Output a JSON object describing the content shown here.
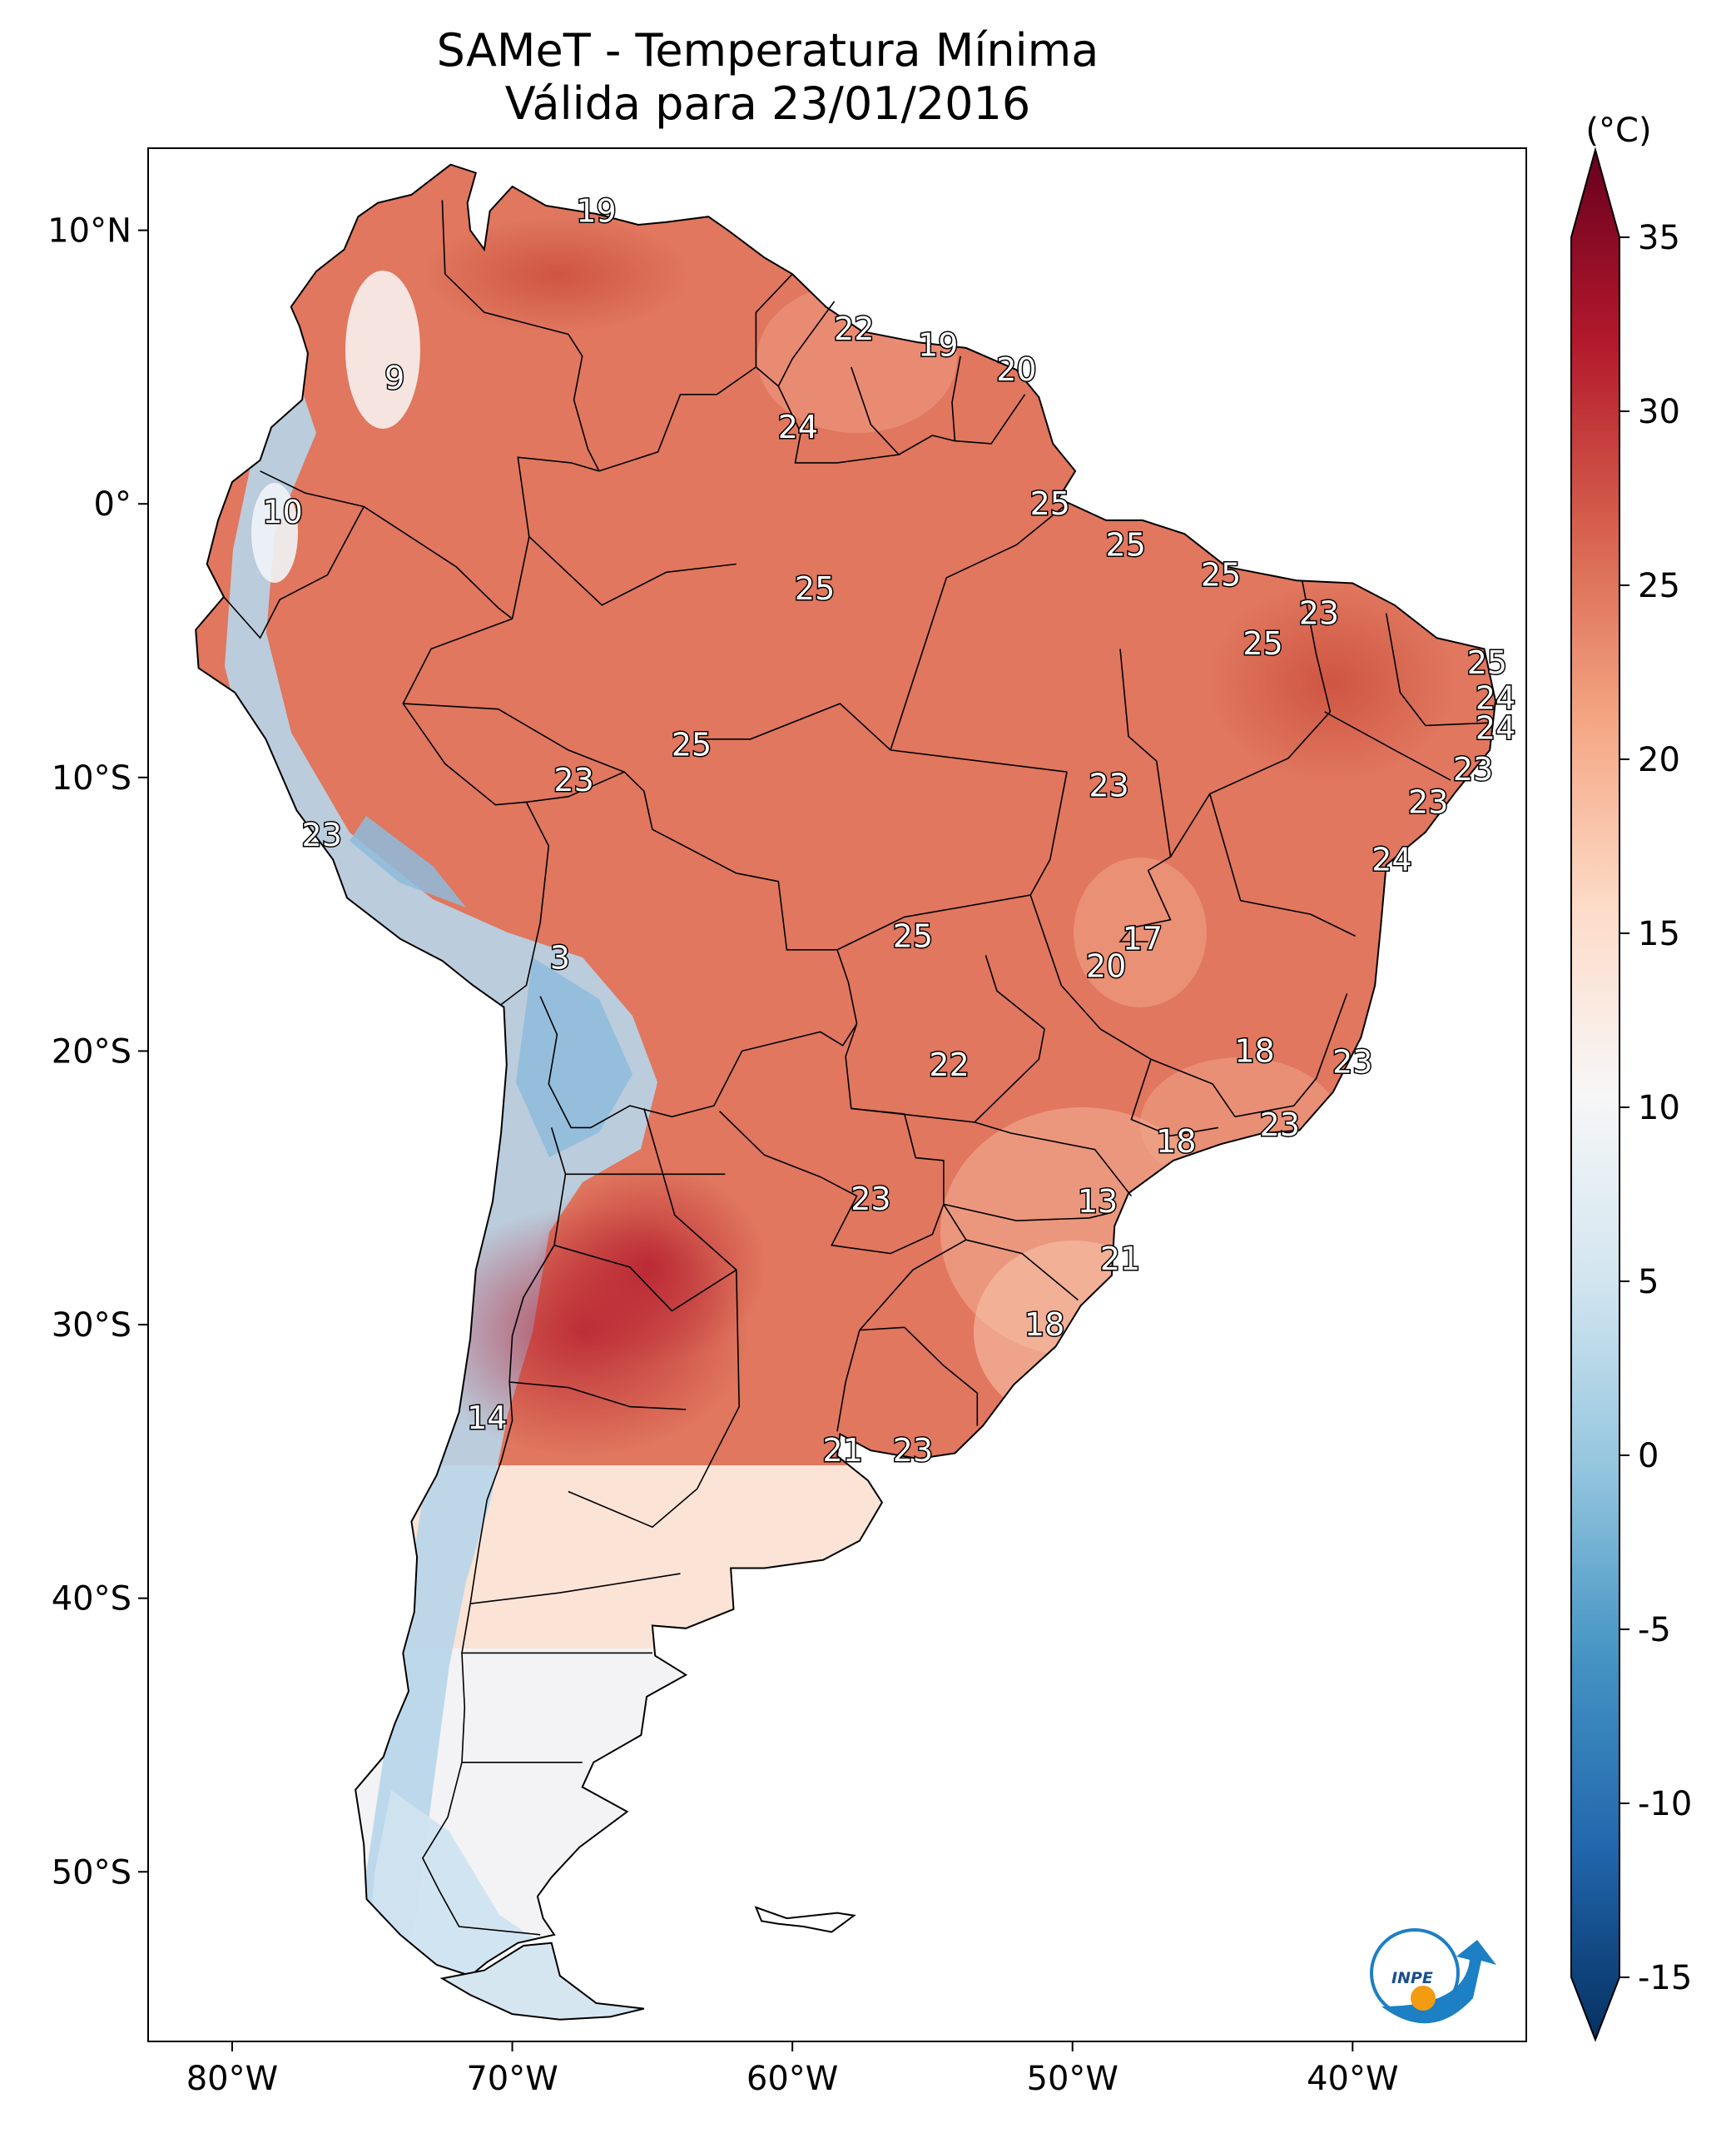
{
  "title": "SAMeT - Temperatura Mínima",
  "subtitle": "Válida para 23/01/2016",
  "colorbar": {
    "unit": "(°C)",
    "min": -15,
    "max": 35,
    "ticks": [
      "35",
      "30",
      "25",
      "20",
      "15",
      "10",
      "5",
      "0",
      "-5",
      "-10",
      "-15"
    ],
    "colors": [
      "#67001f",
      "#b2182b",
      "#d6604d",
      "#f4a582",
      "#fddbc7",
      "#f7f7f7",
      "#d1e5f0",
      "#92c5de",
      "#4393c3",
      "#2166ac",
      "#053061"
    ]
  },
  "axes": {
    "lon_labels": [
      "80°W",
      "70°W",
      "60°W",
      "50°W",
      "40°W"
    ],
    "lat_labels": [
      "10°N",
      "0°",
      "10°S",
      "20°S",
      "30°S",
      "40°S",
      "50°S"
    ]
  },
  "map_labels": [
    {
      "v": "19",
      "lon": -67.0,
      "lat": 10.7
    },
    {
      "v": "9",
      "lon": -74.2,
      "lat": 4.6
    },
    {
      "v": "22",
      "lon": -57.8,
      "lat": 6.4
    },
    {
      "v": "19",
      "lon": -54.8,
      "lat": 5.8
    },
    {
      "v": "20",
      "lon": -52.0,
      "lat": 4.9
    },
    {
      "v": "24",
      "lon": -59.8,
      "lat": 2.8
    },
    {
      "v": "10",
      "lon": -78.2,
      "lat": -0.3
    },
    {
      "v": "25",
      "lon": -50.8,
      "lat": 0.0
    },
    {
      "v": "25",
      "lon": -48.1,
      "lat": -1.5
    },
    {
      "v": "25",
      "lon": -44.7,
      "lat": -2.6
    },
    {
      "v": "25",
      "lon": -59.2,
      "lat": -3.1
    },
    {
      "v": "23",
      "lon": -41.2,
      "lat": -4.0
    },
    {
      "v": "25",
      "lon": -43.2,
      "lat": -5.1
    },
    {
      "v": "25",
      "lon": -35.2,
      "lat": -5.8
    },
    {
      "v": "24",
      "lon": -34.9,
      "lat": -7.1
    },
    {
      "v": "24",
      "lon": -34.9,
      "lat": -8.2
    },
    {
      "v": "25",
      "lon": -63.6,
      "lat": -8.8
    },
    {
      "v": "23",
      "lon": -35.7,
      "lat": -9.7
    },
    {
      "v": "23",
      "lon": -67.8,
      "lat": -10.1
    },
    {
      "v": "23",
      "lon": -48.7,
      "lat": -10.3
    },
    {
      "v": "23",
      "lon": -37.3,
      "lat": -10.9
    },
    {
      "v": "23",
      "lon": -76.8,
      "lat": -12.1
    },
    {
      "v": "24",
      "lon": -38.6,
      "lat": -13.0
    },
    {
      "v": "25",
      "lon": -55.7,
      "lat": -15.8
    },
    {
      "v": "17",
      "lon": -47.5,
      "lat": -15.9
    },
    {
      "v": "3",
      "lon": -68.3,
      "lat": -16.6
    },
    {
      "v": "20",
      "lon": -48.8,
      "lat": -16.9
    },
    {
      "v": "18",
      "lon": -43.5,
      "lat": -20.0
    },
    {
      "v": "23",
      "lon": -40.0,
      "lat": -20.4
    },
    {
      "v": "22",
      "lon": -54.4,
      "lat": -20.5
    },
    {
      "v": "23",
      "lon": -42.6,
      "lat": -22.7
    },
    {
      "v": "18",
      "lon": -46.3,
      "lat": -23.3
    },
    {
      "v": "23",
      "lon": -57.2,
      "lat": -25.4
    },
    {
      "v": "13",
      "lon": -49.1,
      "lat": -25.5
    },
    {
      "v": "21",
      "lon": -48.3,
      "lat": -27.6
    },
    {
      "v": "18",
      "lon": -51.0,
      "lat": -30.0
    },
    {
      "v": "14",
      "lon": -70.9,
      "lat": -33.4
    },
    {
      "v": "21",
      "lon": -58.2,
      "lat": -34.6
    },
    {
      "v": "23",
      "lon": -55.7,
      "lat": -34.6
    }
  ],
  "logo": {
    "text": "INPE"
  }
}
